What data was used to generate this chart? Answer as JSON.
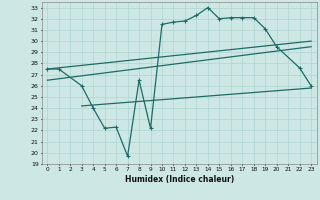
{
  "title": "",
  "xlabel": "Humidex (Indice chaleur)",
  "xlim": [
    -0.5,
    23.5
  ],
  "ylim": [
    19,
    33.5
  ],
  "yticks": [
    19,
    20,
    21,
    22,
    23,
    24,
    25,
    26,
    27,
    28,
    29,
    30,
    31,
    32,
    33
  ],
  "xticks": [
    0,
    1,
    2,
    3,
    4,
    5,
    6,
    7,
    8,
    9,
    10,
    11,
    12,
    13,
    14,
    15,
    16,
    17,
    18,
    19,
    20,
    21,
    22,
    23
  ],
  "bg_color": "#cde8e4",
  "line_color": "#1e6b65",
  "grid_color": "#b0d4d0",
  "line1_x": [
    0,
    1,
    3,
    4,
    5,
    6,
    7,
    8,
    9,
    10,
    11,
    12,
    13,
    14,
    15,
    16,
    17,
    18,
    19,
    20,
    22,
    23
  ],
  "line1_y": [
    27.5,
    27.5,
    26.0,
    24.0,
    22.2,
    22.3,
    19.7,
    26.5,
    22.2,
    31.5,
    31.7,
    31.8,
    32.3,
    33.0,
    32.0,
    32.1,
    32.1,
    32.1,
    31.1,
    29.5,
    27.6,
    26.0
  ],
  "line2_x": [
    0,
    23
  ],
  "line2_y": [
    27.5,
    30.0
  ],
  "line3_x": [
    0,
    23
  ],
  "line3_y": [
    26.5,
    29.5
  ],
  "line4_x": [
    3,
    23
  ],
  "line4_y": [
    24.2,
    25.8
  ],
  "marker": "+",
  "markersize": 3.5,
  "linewidth": 0.9
}
